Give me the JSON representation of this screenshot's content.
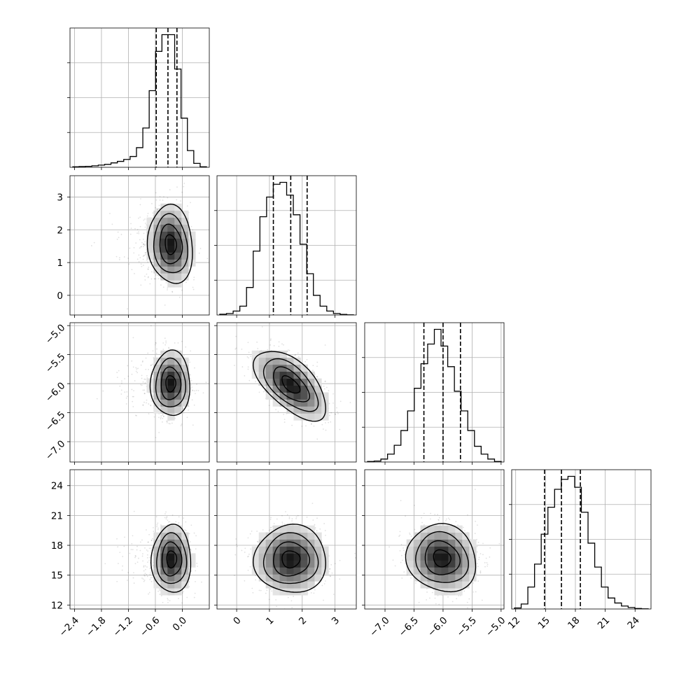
{
  "chart_data": {
    "type": "corner-plot",
    "grid": true,
    "parameters": [
      {
        "index": 0,
        "range": [
          -2.5,
          0.6
        ],
        "ticks": [
          -2.4,
          -1.8,
          -1.2,
          -0.6,
          0.0
        ],
        "tick_labels": [
          "−2.4",
          "−1.8",
          "−1.2",
          "−0.6",
          "0.0"
        ],
        "quantiles": [
          -0.58,
          -0.32,
          -0.12
        ]
      },
      {
        "index": 1,
        "range": [
          -0.6,
          3.65
        ],
        "ticks": [
          0,
          1,
          2,
          3
        ],
        "tick_labels": [
          "0",
          "1",
          "2",
          "3"
        ],
        "quantiles": [
          1.12,
          1.65,
          2.15
        ]
      },
      {
        "index": 2,
        "range": [
          -7.35,
          -4.95
        ],
        "ticks": [
          -7.0,
          -6.5,
          -6.0,
          -5.5,
          -5.0
        ],
        "tick_labels": [
          "−7.0",
          "−6.5",
          "−6.0",
          "−5.5",
          "−5.0"
        ],
        "quantiles": [
          -6.33,
          -6.0,
          -5.7
        ]
      },
      {
        "index": 3,
        "range": [
          11.6,
          25.6
        ],
        "ticks": [
          12,
          15,
          18,
          21,
          24
        ],
        "tick_labels": [
          "12",
          "15",
          "18",
          "21",
          "24"
        ],
        "quantiles": [
          14.9,
          16.6,
          18.5
        ]
      }
    ],
    "histograms": [
      {
        "param": 0,
        "values": [
          0.5,
          0.8,
          1.0,
          1.5,
          2.2,
          3,
          4.5,
          6,
          8,
          11,
          20,
          40,
          78,
          118,
          135,
          135,
          100,
          50,
          17,
          4,
          0.5
        ]
      },
      {
        "param": 1,
        "values": [
          0.8,
          1.5,
          4,
          9,
          28,
          65,
          100,
          120,
          133,
          135,
          122,
          102,
          72,
          42,
          20,
          9,
          4,
          1.5,
          0.6,
          0.2
        ]
      },
      {
        "param": 2,
        "values": [
          0.5,
          1,
          3,
          8,
          17,
          32,
          52,
          75,
          100,
          120,
          135,
          118,
          97,
          72,
          52,
          32,
          16,
          8,
          3,
          0.5
        ]
      },
      {
        "param": 3,
        "values": [
          1,
          5,
          22,
          45,
          75,
          102,
          120,
          130,
          133,
          122,
          97,
          66,
          42,
          22,
          11,
          6,
          3,
          1.5,
          0.5,
          0.2
        ]
      }
    ],
    "joint_distributions": [
      {
        "x_param": 0,
        "y_param": 1,
        "center": [
          -0.26,
          1.55
        ],
        "sigma": [
          0.25,
          0.6
        ],
        "correlation": -0.1
      },
      {
        "x_param": 0,
        "y_param": 2,
        "center": [
          -0.26,
          -6.0
        ],
        "sigma": [
          0.22,
          0.28
        ],
        "correlation": 0.0
      },
      {
        "x_param": 1,
        "y_param": 2,
        "center": [
          1.65,
          -6.02
        ],
        "sigma": [
          0.55,
          0.3
        ],
        "correlation": -0.6
      },
      {
        "x_param": 0,
        "y_param": 3,
        "center": [
          -0.24,
          16.6
        ],
        "sigma": [
          0.22,
          1.7
        ],
        "correlation": 0.0
      },
      {
        "x_param": 1,
        "y_param": 3,
        "center": [
          1.65,
          16.6
        ],
        "sigma": [
          0.55,
          1.7
        ],
        "correlation": 0.0
      },
      {
        "x_param": 2,
        "y_param": 3,
        "center": [
          -6.02,
          16.7
        ],
        "sigma": [
          0.3,
          1.7
        ],
        "correlation": -0.1
      }
    ]
  }
}
